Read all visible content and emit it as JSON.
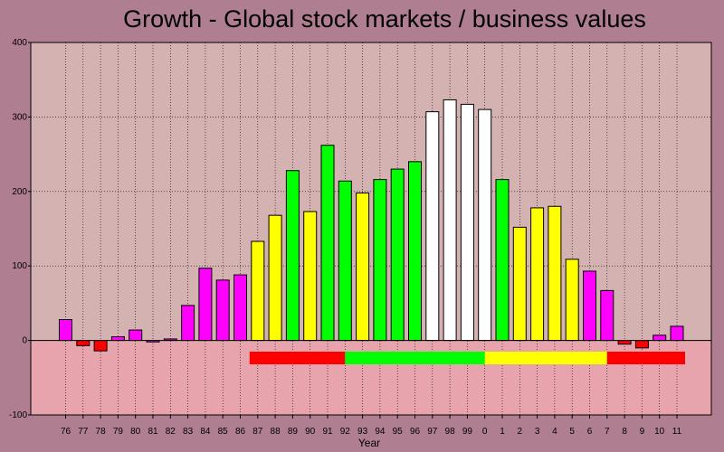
{
  "chart_data": {
    "type": "bar",
    "title": "Growth - Global stock markets / business values",
    "xlabel": "Year",
    "ylabel": "",
    "ylim": [
      -100,
      400
    ],
    "yticks": [
      -100,
      0,
      100,
      200,
      300,
      400
    ],
    "grid": true,
    "categories": [
      "76",
      "77",
      "78",
      "79",
      "80",
      "81",
      "82",
      "83",
      "84",
      "85",
      "86",
      "87",
      "88",
      "89",
      "90",
      "91",
      "92",
      "93",
      "94",
      "95",
      "96",
      "97",
      "98",
      "99",
      "0",
      "1",
      "2",
      "3",
      "4",
      "5",
      "6",
      "7",
      "8",
      "9",
      "10",
      "11"
    ],
    "values": [
      28,
      -7,
      -14,
      5,
      14,
      -2,
      2,
      47,
      97,
      81,
      88,
      133,
      168,
      228,
      173,
      262,
      214,
      198,
      216,
      230,
      240,
      307,
      323,
      317,
      310,
      216,
      152,
      178,
      180,
      109,
      93,
      67,
      -5,
      -10,
      7,
      19
    ],
    "bar_colors": [
      "#ff00ff",
      "#ff0000",
      "#ff0000",
      "#ff00ff",
      "#ff00ff",
      "#ff00ff",
      "#ff00ff",
      "#ff00ff",
      "#ff00ff",
      "#ff00ff",
      "#ff00ff",
      "#ffff00",
      "#ffff00",
      "#00ff00",
      "#ffff00",
      "#00ff00",
      "#00ff00",
      "#ffff00",
      "#00ff00",
      "#00ff00",
      "#00ff00",
      "#ffffff",
      "#ffffff",
      "#ffffff",
      "#ffffff",
      "#00ff00",
      "#ffff00",
      "#ffff00",
      "#ffff00",
      "#ffff00",
      "#ff00ff",
      "#ff00ff",
      "#ff0000",
      "#ff0000",
      "#ff00ff",
      "#ff00ff"
    ],
    "phase_bands": [
      {
        "from": "87",
        "to": "92",
        "color": "#ff0000"
      },
      {
        "from": "92",
        "to": "0",
        "color": "#00ff00"
      },
      {
        "from": "0",
        "to": "7",
        "color": "#ffff00"
      },
      {
        "from": "7",
        "to": "11",
        "color": "#ff0000"
      }
    ],
    "background_colors": {
      "positive_region": "#d5b2b2",
      "negative_region": "#e8a4ad",
      "frame": "#b07e91"
    }
  }
}
